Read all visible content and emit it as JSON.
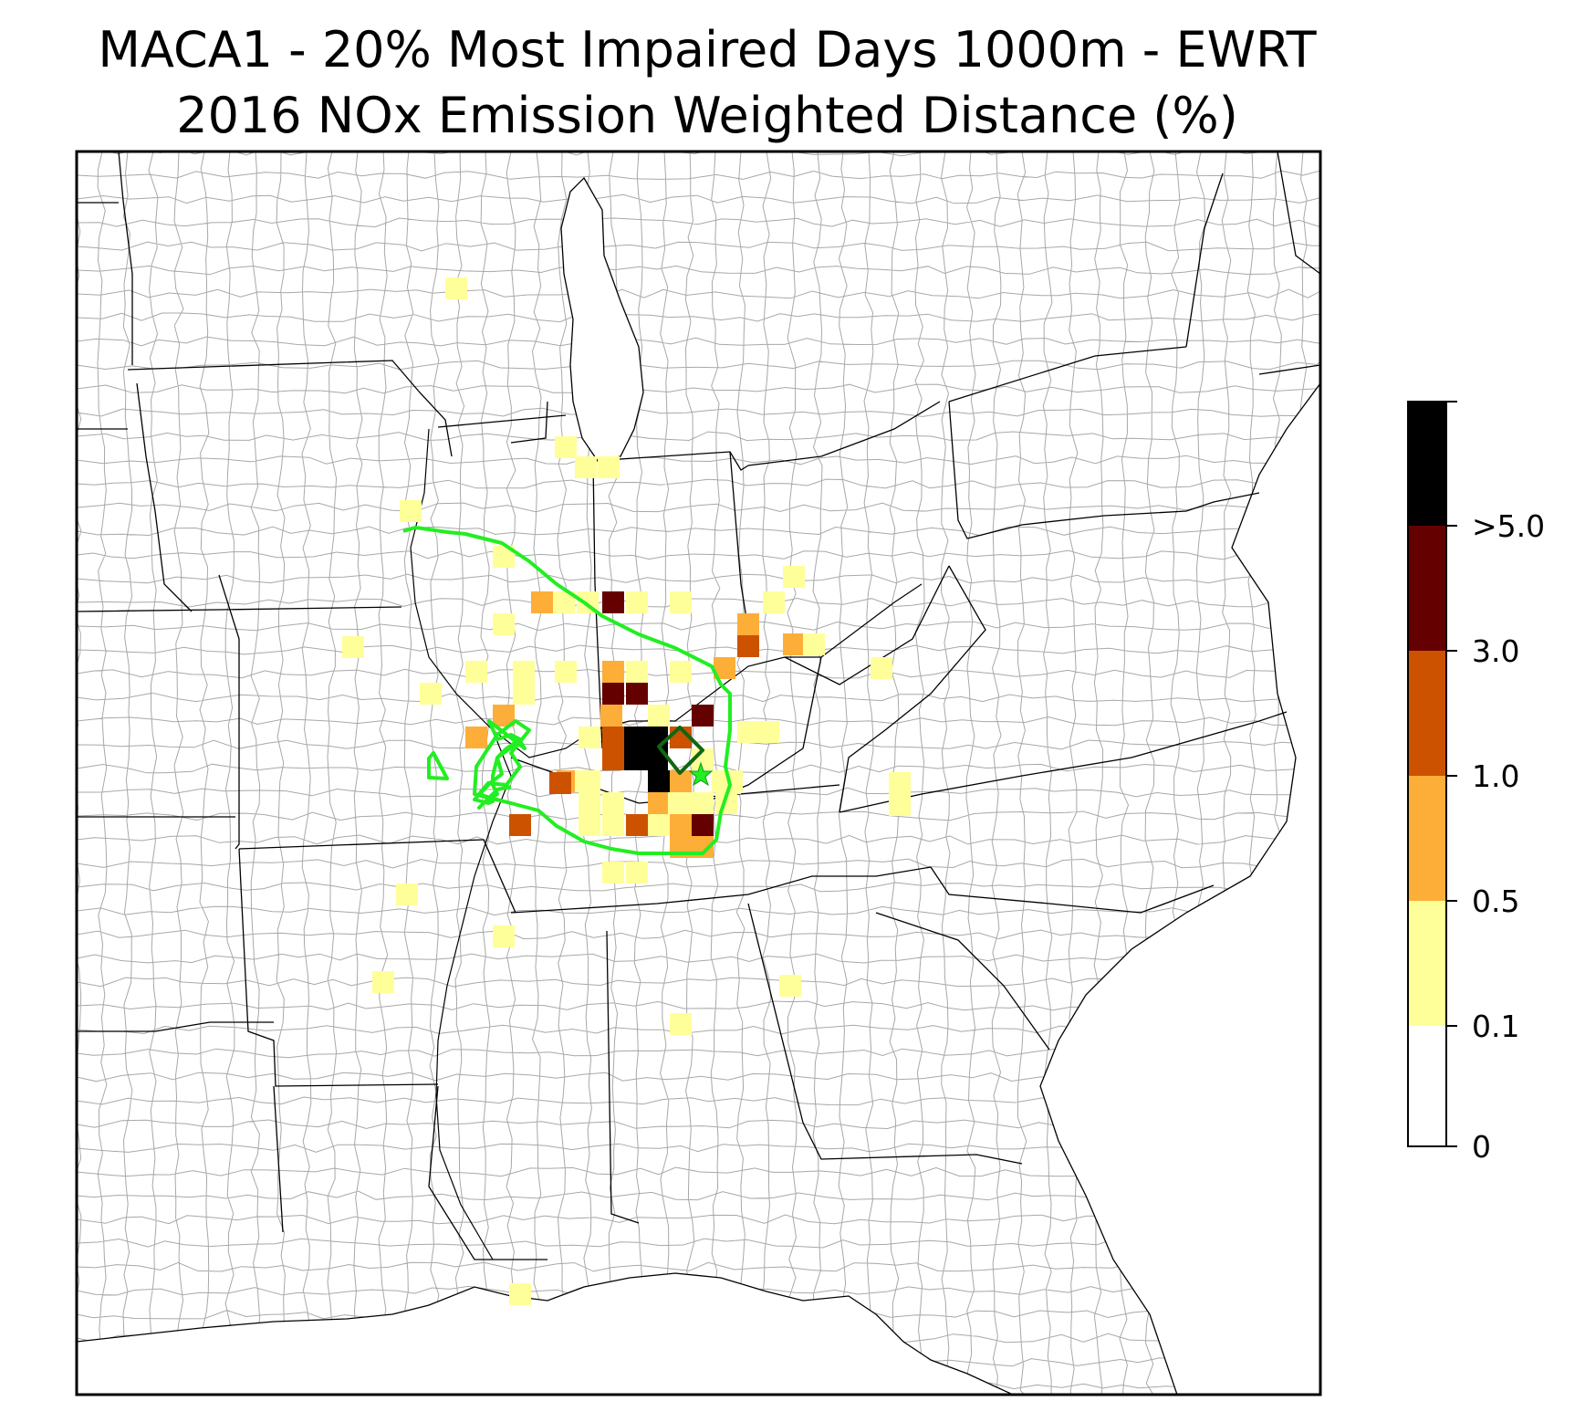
{
  "figure": {
    "title_line1": "MACA1 - 20% Most Impaired Days 1000m - EWRT",
    "title_line2": "2016 NOx Emission Weighted Distance (%)"
  },
  "map": {
    "region": "Eastern United States",
    "features": [
      "state-boundaries",
      "county-boundaries",
      "coastline"
    ],
    "site_marker": "star",
    "contour_colors": {
      "outer": "#22ee22",
      "inner": "#116611"
    },
    "cell_colors": {
      "0.1-0.5": "#ffff99",
      "0.5-1.0": "#fdae38",
      "1.0-3.0": "#cc5200",
      "3.0-5.0": "#650000",
      ">5.0": "#000000"
    }
  },
  "colorbar": {
    "tick_labels": [
      "0",
      "0.1",
      "0.5",
      "1.0",
      "3.0",
      ">5.0"
    ],
    "colors": [
      "#ffffff",
      "#ffff99",
      "#fdae38",
      "#cc5200",
      "#650000",
      "#000000"
    ]
  }
}
